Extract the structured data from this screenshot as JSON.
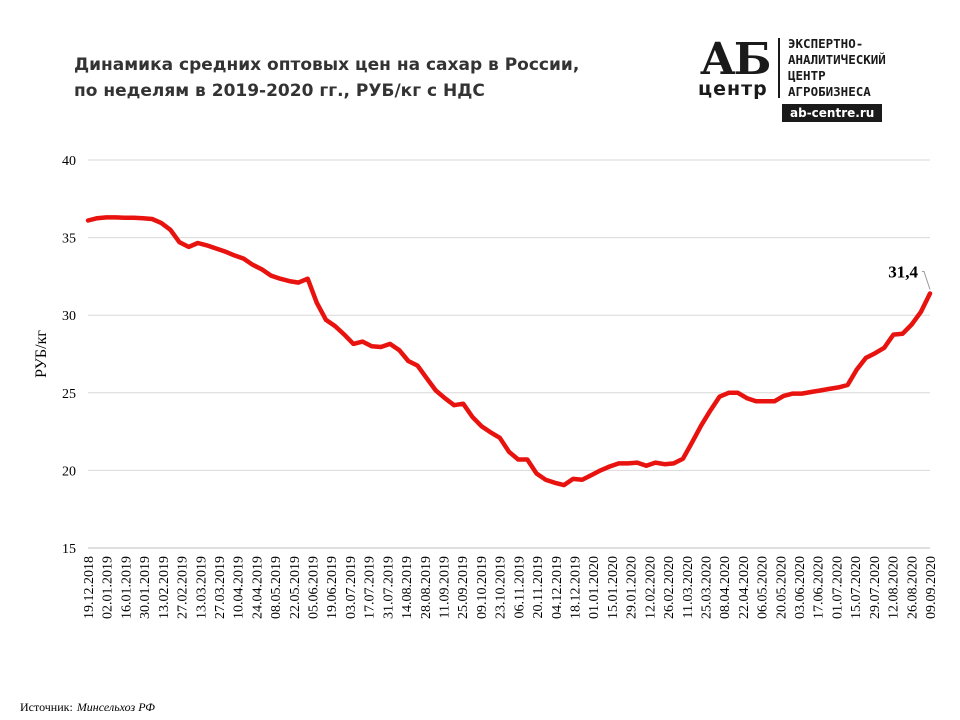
{
  "title": {
    "line1": "Динамика средних оптовых цен на сахар в России,",
    "line2": "по неделям в 2019-2020 гг., РУБ/кг с НДС"
  },
  "logo": {
    "mark_top": "АБ",
    "mark_bottom": "центр",
    "text_lines": [
      "ЭКСПЕРТНО-",
      "АНАЛИТИЧЕСКИЙ",
      "ЦЕНТР",
      "АГРОБИЗНЕСА"
    ],
    "url": "ab-centre.ru"
  },
  "source": {
    "label": "Источник:",
    "value": "Минсельхоз РФ"
  },
  "colors": {
    "line": "#e8130f",
    "grid": "#d9d9d9",
    "text": "#000000"
  },
  "chart_data": {
    "type": "line",
    "title": "Динамика средних оптовых цен на сахар в России, по неделям в 2019-2020 гг., РУБ/кг с НДС",
    "ylabel": "РУБ/кг",
    "xlabel": "",
    "ylim": [
      15,
      40
    ],
    "yticks": [
      15,
      20,
      25,
      30,
      35,
      40
    ],
    "grid": true,
    "legend": "none",
    "x_tick_labels": [
      "19.12.2018",
      "02.01.2019",
      "16.01.2019",
      "30.01.2019",
      "13.02.2019",
      "27.02.2019",
      "13.03.2019",
      "27.03.2019",
      "10.04.2019",
      "24.04.2019",
      "08.05.2019",
      "22.05.2019",
      "05.06.2019",
      "19.06.2019",
      "03.07.2019",
      "17.07.2019",
      "31.07.2019",
      "14.08.2019",
      "28.08.2019",
      "11.09.2019",
      "25.09.2019",
      "09.10.2019",
      "23.10.2019",
      "06.11.2019",
      "20.11.2019",
      "04.12.2019",
      "18.12.2019",
      "01.01.2020",
      "15.01.2020",
      "29.01.2020",
      "12.02.2020",
      "26.02.2020",
      "11.03.2020",
      "25.03.2020",
      "08.04.2020",
      "22.04.2020",
      "06.05.2020",
      "20.05.2020",
      "03.06.2020",
      "17.06.2020",
      "01.07.2020",
      "15.07.2020",
      "29.07.2020",
      "12.08.2020",
      "26.08.2020",
      "09.09.2020"
    ],
    "values": [
      36.1,
      36.25,
      36.3,
      36.3,
      36.28,
      36.28,
      36.25,
      36.2,
      35.95,
      35.5,
      34.7,
      34.4,
      34.65,
      34.5,
      34.3,
      34.1,
      33.85,
      33.65,
      33.25,
      32.95,
      32.55,
      32.35,
      32.2,
      32.1,
      32.35,
      30.8,
      29.7,
      29.3,
      28.75,
      28.15,
      28.3,
      28.0,
      27.95,
      28.15,
      27.75,
      27.05,
      26.75,
      25.95,
      25.15,
      24.65,
      24.2,
      24.3,
      23.45,
      22.85,
      22.45,
      22.1,
      21.2,
      20.7,
      20.7,
      19.8,
      19.4,
      19.2,
      19.05,
      19.45,
      19.4,
      19.7,
      20.0,
      20.25,
      20.45,
      20.45,
      20.5,
      20.3,
      20.5,
      20.4,
      20.45,
      20.75,
      21.8,
      22.9,
      23.85,
      24.75,
      25.0,
      25.0,
      24.65,
      24.45,
      24.45,
      24.45,
      24.8,
      24.95,
      24.95,
      25.05,
      25.15,
      25.25,
      25.35,
      25.5,
      26.5,
      27.25,
      27.55,
      27.9,
      28.75,
      28.8,
      29.4,
      30.2,
      31.4
    ],
    "annotations": [
      {
        "label": "31,4",
        "value": 31.4,
        "at": "last"
      }
    ]
  }
}
